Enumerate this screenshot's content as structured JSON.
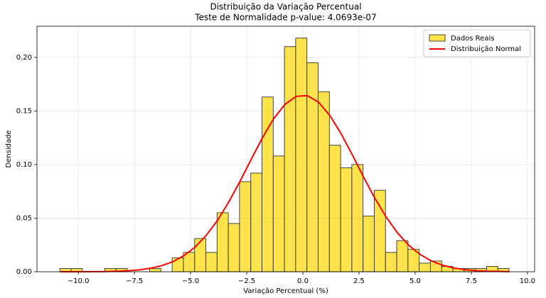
{
  "chart_data": {
    "type": "histogram",
    "title": "Distribuição da Variação Percentual",
    "subtitle": "Teste de Normalidade p-value: 4.0693e-07",
    "xlabel": "Variação Percentual (%)",
    "ylabel": "Densidade",
    "bins": [
      -10.82,
      -10.32,
      -9.82,
      -9.32,
      -8.82,
      -8.32,
      -7.82,
      -7.32,
      -6.82,
      -6.32,
      -5.82,
      -5.32,
      -4.82,
      -4.32,
      -3.82,
      -3.32,
      -2.82,
      -2.32,
      -1.82,
      -1.32,
      -0.82,
      -0.32,
      0.18,
      0.68,
      1.18,
      1.68,
      2.18,
      2.68,
      3.18,
      3.68,
      4.18,
      4.68,
      5.18,
      5.68,
      6.18,
      6.68,
      7.18,
      7.68,
      8.18,
      8.68,
      9.18
    ],
    "hist": {
      "name": "Dados Reais",
      "color": "#ffd700",
      "edgecolor": "#333333",
      "values": [
        0.003,
        0.003,
        0,
        0,
        0.003,
        0.003,
        0,
        0,
        0.003,
        0,
        0.013,
        0.018,
        0.031,
        0.018,
        0.055,
        0.045,
        0.084,
        0.092,
        0.163,
        0.108,
        0.21,
        0.218,
        0.195,
        0.168,
        0.118,
        0.097,
        0.1,
        0.052,
        0.076,
        0.018,
        0.029,
        0.021,
        0.008,
        0.01,
        0.005,
        0.003,
        0.003,
        0.003,
        0.005,
        0.003
      ]
    },
    "line": {
      "name": "Distribuição Normal",
      "color": "#ff0000",
      "x": [
        -10.8,
        -10.3,
        -9.8,
        -9.3,
        -8.8,
        -8.3,
        -7.8,
        -7.3,
        -6.8,
        -6.3,
        -5.8,
        -5.3,
        -4.8,
        -4.3,
        -3.8,
        -3.3,
        -2.8,
        -2.3,
        -1.8,
        -1.3,
        -0.8,
        -0.3,
        0.2,
        0.7,
        1.2,
        1.7,
        2.2,
        2.7,
        3.2,
        3.7,
        4.2,
        4.7,
        5.2,
        5.7,
        6.2,
        6.7,
        7.2,
        7.7,
        8.2,
        8.7,
        9.2
      ],
      "values": [
        0.0,
        2e-05,
        5e-05,
        0.0001,
        0.0002,
        0.0005,
        0.0009,
        0.0017,
        0.0032,
        0.0056,
        0.0093,
        0.015,
        0.023,
        0.034,
        0.048,
        0.0651,
        0.0844,
        0.1049,
        0.125,
        0.1428,
        0.1561,
        0.1636,
        0.1643,
        0.1581,
        0.1458,
        0.1288,
        0.1091,
        0.0884,
        0.0688,
        0.0513,
        0.0366,
        0.025,
        0.0164,
        0.0103,
        0.0062,
        0.0036,
        0.002,
        0.001,
        0.0005,
        0.0003,
        0.0001
      ]
    },
    "xlim": [
      -11.84,
      10.32
    ],
    "ylim": [
      0,
      0.229
    ],
    "xticks": [
      {
        "value": -10,
        "label": "−10.0"
      },
      {
        "value": -7.5,
        "label": "−7.5"
      },
      {
        "value": -5,
        "label": "−5.0"
      },
      {
        "value": -2.5,
        "label": "−2.5"
      },
      {
        "value": 0,
        "label": "0.0"
      },
      {
        "value": 2.5,
        "label": "2.5"
      },
      {
        "value": 5,
        "label": "5.0"
      },
      {
        "value": 7.5,
        "label": "7.5"
      },
      {
        "value": 10,
        "label": "10.0"
      }
    ],
    "yticks": [
      {
        "value": 0,
        "label": "0.00"
      },
      {
        "value": 0.05,
        "label": "0.05"
      },
      {
        "value": 0.1,
        "label": "0.10"
      },
      {
        "value": 0.15,
        "label": "0.15"
      },
      {
        "value": 0.2,
        "label": "0.20"
      }
    ],
    "grid": true,
    "legend": "upper right"
  }
}
